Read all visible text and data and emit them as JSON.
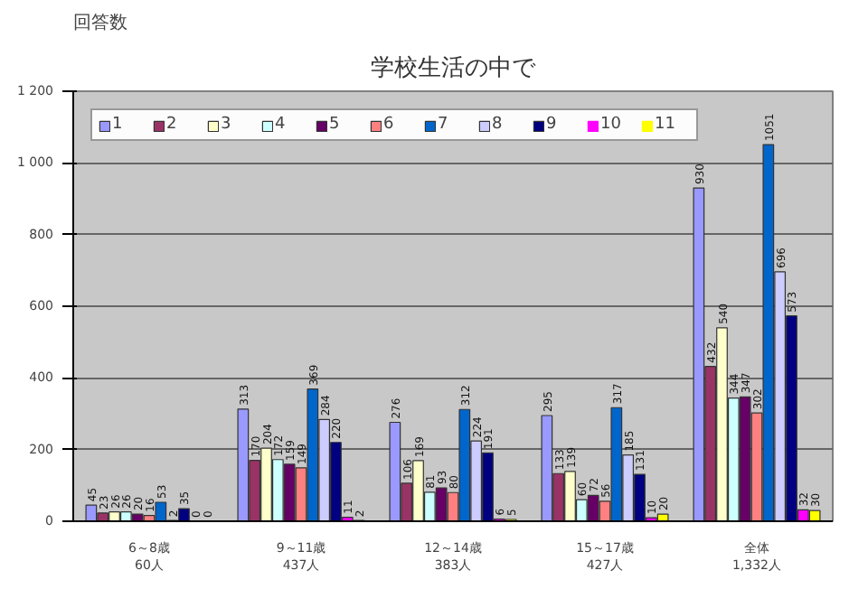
{
  "chart_data": {
    "type": "bar",
    "title": "学校生活の中で",
    "ylabel": "回答数",
    "categories": [
      "6～8歳\n60人",
      "9～11歳\n437人",
      "12～14歳\n383人",
      "15～17歳\n427人",
      "全体\n1,332人"
    ],
    "series": [
      {
        "name": "1",
        "color": "#9999ff",
        "values": [
          45,
          313,
          276,
          295,
          930
        ]
      },
      {
        "name": "2",
        "color": "#993366",
        "values": [
          23,
          170,
          106,
          133,
          432
        ]
      },
      {
        "name": "3",
        "color": "#ffffcc",
        "values": [
          26,
          204,
          169,
          139,
          540
        ]
      },
      {
        "name": "4",
        "color": "#ccffff",
        "values": [
          26,
          172,
          81,
          60,
          344
        ]
      },
      {
        "name": "5",
        "color": "#660066",
        "values": [
          20,
          159,
          93,
          72,
          347
        ]
      },
      {
        "name": "6",
        "color": "#ff8080",
        "values": [
          16,
          149,
          80,
          56,
          302
        ]
      },
      {
        "name": "7",
        "color": "#0066cc",
        "values": [
          53,
          369,
          312,
          317,
          1051
        ]
      },
      {
        "name": "8",
        "color": "#ccccff",
        "values": [
          2,
          284,
          224,
          185,
          696
        ]
      },
      {
        "name": "9",
        "color": "#000080",
        "values": [
          35,
          220,
          191,
          131,
          573
        ]
      },
      {
        "name": "10",
        "color": "#ff00ff",
        "values": [
          0,
          11,
          6,
          10,
          32
        ]
      },
      {
        "name": "11",
        "color": "#ffff00",
        "values": [
          0,
          2,
          5,
          20,
          30
        ]
      }
    ],
    "ylim": [
      0,
      1200
    ],
    "yticks": [
      0,
      200,
      400,
      600,
      800,
      {
        "value": 1000,
        "label": "1 000"
      },
      {
        "value": 1200,
        "label": "1 200"
      }
    ],
    "grid": "y",
    "legend": "top",
    "data_labels": true
  }
}
